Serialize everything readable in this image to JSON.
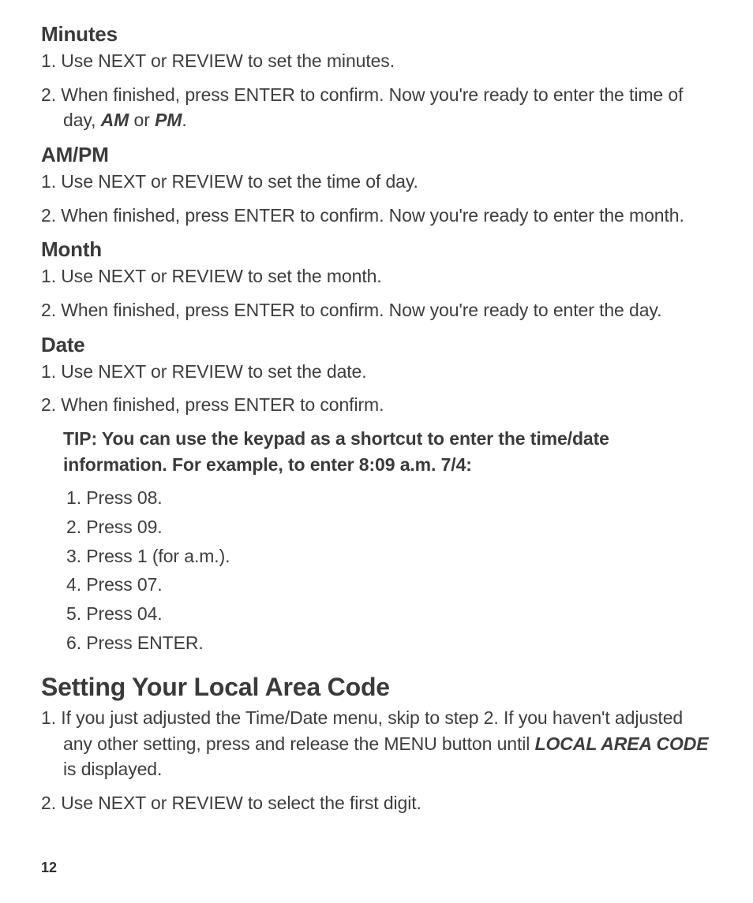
{
  "colors": {
    "background": "#ffffff",
    "text": "#3d3d3d",
    "heading": "#3a3a3a"
  },
  "typography": {
    "body_fontsize": 23,
    "h3_fontsize": 26,
    "h2_fontsize": 32,
    "pagenum_fontsize": 18
  },
  "minutes": {
    "heading": "Minutes",
    "steps": [
      "Use NEXT or REVIEW to set the minutes.",
      "When finished, press ENTER to confirm. Now you're ready to enter the time of day, <b><i>AM</i></b> or <b><i>PM</i></b>."
    ]
  },
  "ampm": {
    "heading": "AM/PM",
    "steps": [
      "Use NEXT or REVIEW to set the time of day.",
      "When finished, press ENTER to confirm. Now you're ready to enter the month."
    ]
  },
  "month": {
    "heading": "Month",
    "steps": [
      "Use NEXT or REVIEW to set the month.",
      "When finished, press ENTER to confirm. Now you're ready to enter the day."
    ]
  },
  "date": {
    "heading": "Date",
    "steps": [
      "Use NEXT or REVIEW to set the date.",
      "When finished, press ENTER to confirm."
    ]
  },
  "tip": {
    "text": "TIP: You can use the keypad as a shortcut to enter the time/date information. For example, to enter 8:09 a.m. 7/4:",
    "steps": [
      "Press 08.",
      "Press 09.",
      "Press 1 (for a.m.).",
      "Press 07.",
      "Press 04.",
      "Press ENTER."
    ]
  },
  "areacode": {
    "heading": "Setting Your Local Area Code",
    "steps": [
      "If you just adjusted the Time/Date menu, skip to step 2. If you haven't adjusted any other setting, press and release the MENU button until <b><i>LOCAL AREA CODE</i></b> is displayed.",
      "Use NEXT or REVIEW to select the first digit."
    ]
  },
  "page_number": "12"
}
